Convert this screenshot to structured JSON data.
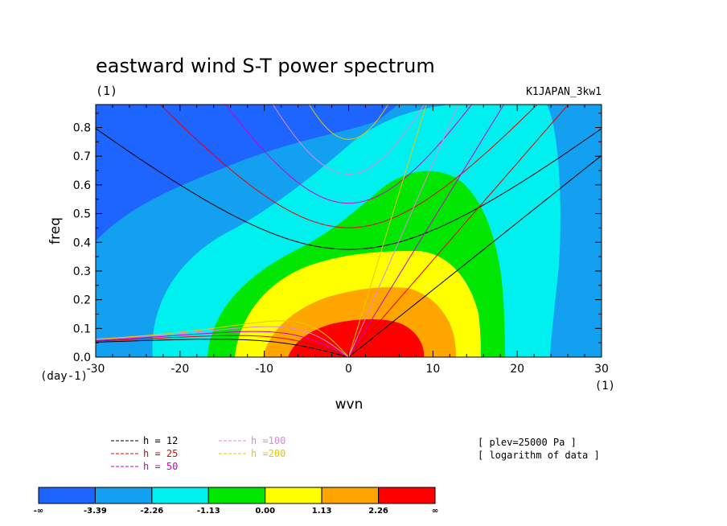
{
  "chart_data": {
    "type": "heatmap",
    "title": "eastward wind S-T power spectrum",
    "title_unit": "(1)",
    "run_label": "K1JAPAN_3kw1",
    "xlabel": "wvn",
    "ylabel": "freq",
    "x_unit": "(1)",
    "y_unit": "(day-1)",
    "xlim": [
      -30,
      30
    ],
    "ylim": [
      0.0,
      0.88
    ],
    "xticks": [
      -30,
      -20,
      -10,
      0,
      10,
      20,
      30
    ],
    "xtick_labels": [
      "-30",
      "-20",
      "-10",
      "0",
      "10",
      "20",
      "30"
    ],
    "yticks": [
      0.0,
      0.1,
      0.2,
      0.3,
      0.4,
      0.5,
      0.6,
      0.7,
      0.8
    ],
    "ytick_labels": [
      "0.0",
      "0.1",
      "0.2",
      "0.3",
      "0.4",
      "0.5",
      "0.6",
      "0.7",
      "0.8"
    ],
    "color_levels": [
      "-∞",
      "-3.39",
      "-2.26",
      "-1.13",
      "0.00",
      "1.13",
      "2.26",
      "∞"
    ],
    "color_bands": [
      "#1e64ff",
      "#14a0f0",
      "#00f0f0",
      "#00e600",
      "#ffff00",
      "#ffa500",
      "#ff0000"
    ],
    "equivalent_depths": [
      {
        "name": "h = 12",
        "h": 12,
        "color": "#000000"
      },
      {
        "name": "h = 25",
        "h": 25,
        "color": "#e60000"
      },
      {
        "name": "h = 50",
        "h": 50,
        "color": "#cc00cc"
      },
      {
        "name": "h =100",
        "h": 100,
        "color": "#dd88dd"
      },
      {
        "name": "h =200",
        "h": 200,
        "color": "#e6c800"
      }
    ],
    "info": [
      "[ plev=25000 Pa ]",
      "[ logarithm of data ]"
    ]
  }
}
